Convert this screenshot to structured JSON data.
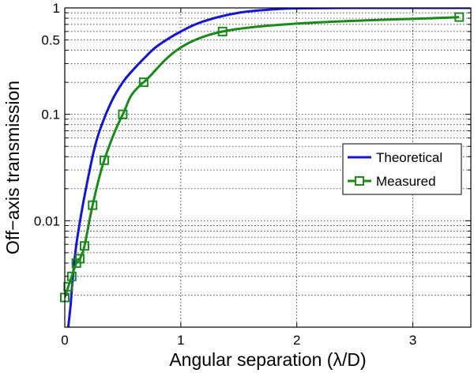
{
  "chart_data": {
    "type": "line",
    "xlabel": "Angular separation (λ/D)",
    "ylabel": "Off−axis transmission",
    "xscale": "linear",
    "yscale": "log",
    "xlim": [
      0,
      3.5
    ],
    "ylim": [
      0.001,
      1.0
    ],
    "grid": true,
    "legend_position": "right",
    "x_ticks": [
      0,
      1,
      2,
      3
    ],
    "x_tick_labels": [
      "0",
      "1",
      "2",
      "3"
    ],
    "y_ticks": [
      0.01,
      0.1,
      0.5,
      1
    ],
    "y_tick_labels": [
      "0.01",
      "0.1",
      "0.5",
      "1"
    ],
    "series": [
      {
        "name": "Theoretical",
        "color": "#1515d6",
        "marker": "none",
        "x": [
          0.03,
          0.05,
          0.07,
          0.1,
          0.15,
          0.2,
          0.25,
          0.3,
          0.4,
          0.5,
          0.6,
          0.7,
          0.8,
          1.0,
          1.2,
          1.5,
          1.8,
          2.0,
          2.5,
          3.0,
          3.5
        ],
        "y": [
          0.001,
          0.0016,
          0.003,
          0.006,
          0.013,
          0.025,
          0.045,
          0.07,
          0.13,
          0.2,
          0.27,
          0.35,
          0.44,
          0.6,
          0.75,
          0.9,
          0.97,
          0.99,
          1.0,
          1.0,
          1.0
        ]
      },
      {
        "name": "Measured",
        "color": "#1a8a1a",
        "marker": "square",
        "x": [
          0.0,
          0.03,
          0.06,
          0.1,
          0.13,
          0.17,
          0.24,
          0.34,
          0.5,
          0.68,
          1.36,
          3.4
        ],
        "y": [
          0.0019,
          0.0024,
          0.003,
          0.004,
          0.0044,
          0.0058,
          0.014,
          0.037,
          0.1,
          0.2,
          0.6,
          0.82
        ]
      }
    ]
  }
}
